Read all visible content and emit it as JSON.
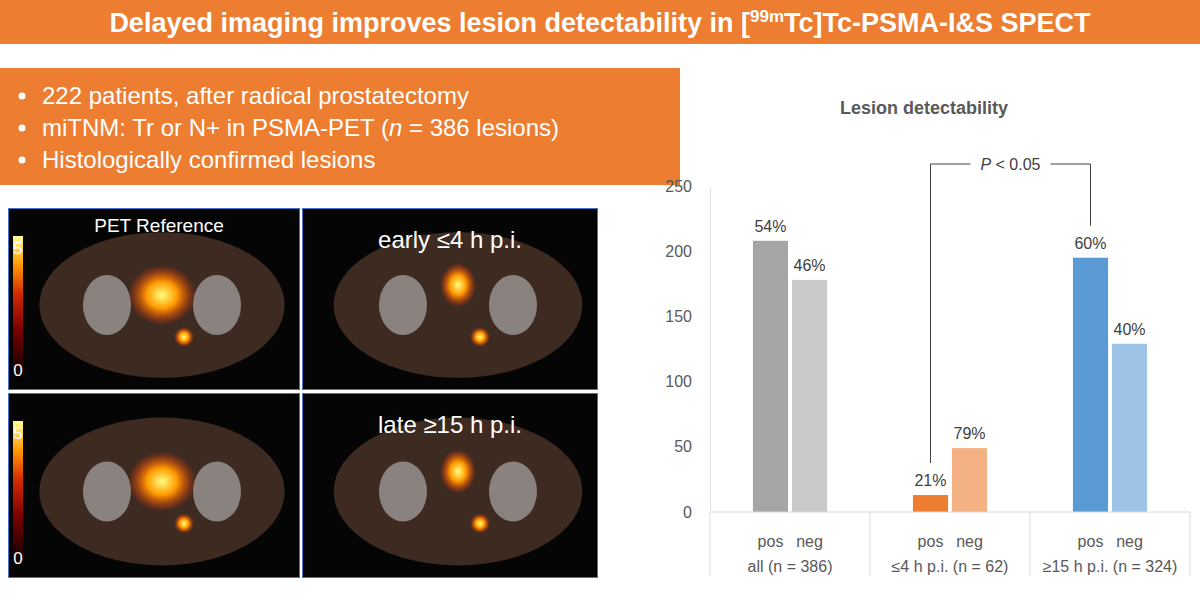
{
  "header": {
    "title": [
      {
        "text": "Delayed imaging improves lesion detectability in ["
      },
      {
        "text": "99m",
        "sup": true
      },
      {
        "text": "Tc]Tc-PSMA-I&S SPECT"
      }
    ]
  },
  "bullets": [
    [
      {
        "text": "222 patients,  after radical prostatectomy"
      }
    ],
    [
      {
        "text": "miTNM: Tr or N+ in PSMA-PET ("
      },
      {
        "text": "n",
        "italic": true
      },
      {
        "text": " = 386 lesions)"
      }
    ],
    [
      {
        "text": "Histologically confirmed lesions"
      }
    ]
  ],
  "figure_panels": [
    {
      "label": "PET Reference",
      "colorbar": [
        0,
        5
      ]
    },
    {
      "label": "early ≤4 h p.i."
    },
    {
      "colorbar": [
        0,
        5
      ]
    },
    {
      "label": "late ≥15 h p.i."
    }
  ],
  "chart_data": {
    "type": "bar",
    "title": "Lesion detectability",
    "categories": [
      "pos",
      "neg",
      "pos",
      "neg",
      "pos",
      "neg"
    ],
    "groups": [
      "all (n = 386)",
      "≤4 h p.i. (n = 62)",
      "≥15 h p.i. (n = 324)"
    ],
    "values": [
      208,
      178,
      13,
      49,
      195,
      129
    ],
    "percent_labels": [
      "54%",
      "46%",
      "21%",
      "79%",
      "60%",
      "40%"
    ],
    "colors": [
      "#a5a5a5",
      "#c9c9c9",
      "#ed7d31",
      "#f4b183",
      "#5b9bd5",
      "#9dc3e6"
    ],
    "ylim": [
      0,
      250
    ],
    "yticks": [
      0,
      50,
      100,
      150,
      200,
      250
    ],
    "grid": false,
    "annotation": {
      "parts": [
        {
          "text": "P",
          "italic": true
        },
        {
          "text": " < 0.05"
        }
      ],
      "from": 2,
      "to": 4
    }
  }
}
